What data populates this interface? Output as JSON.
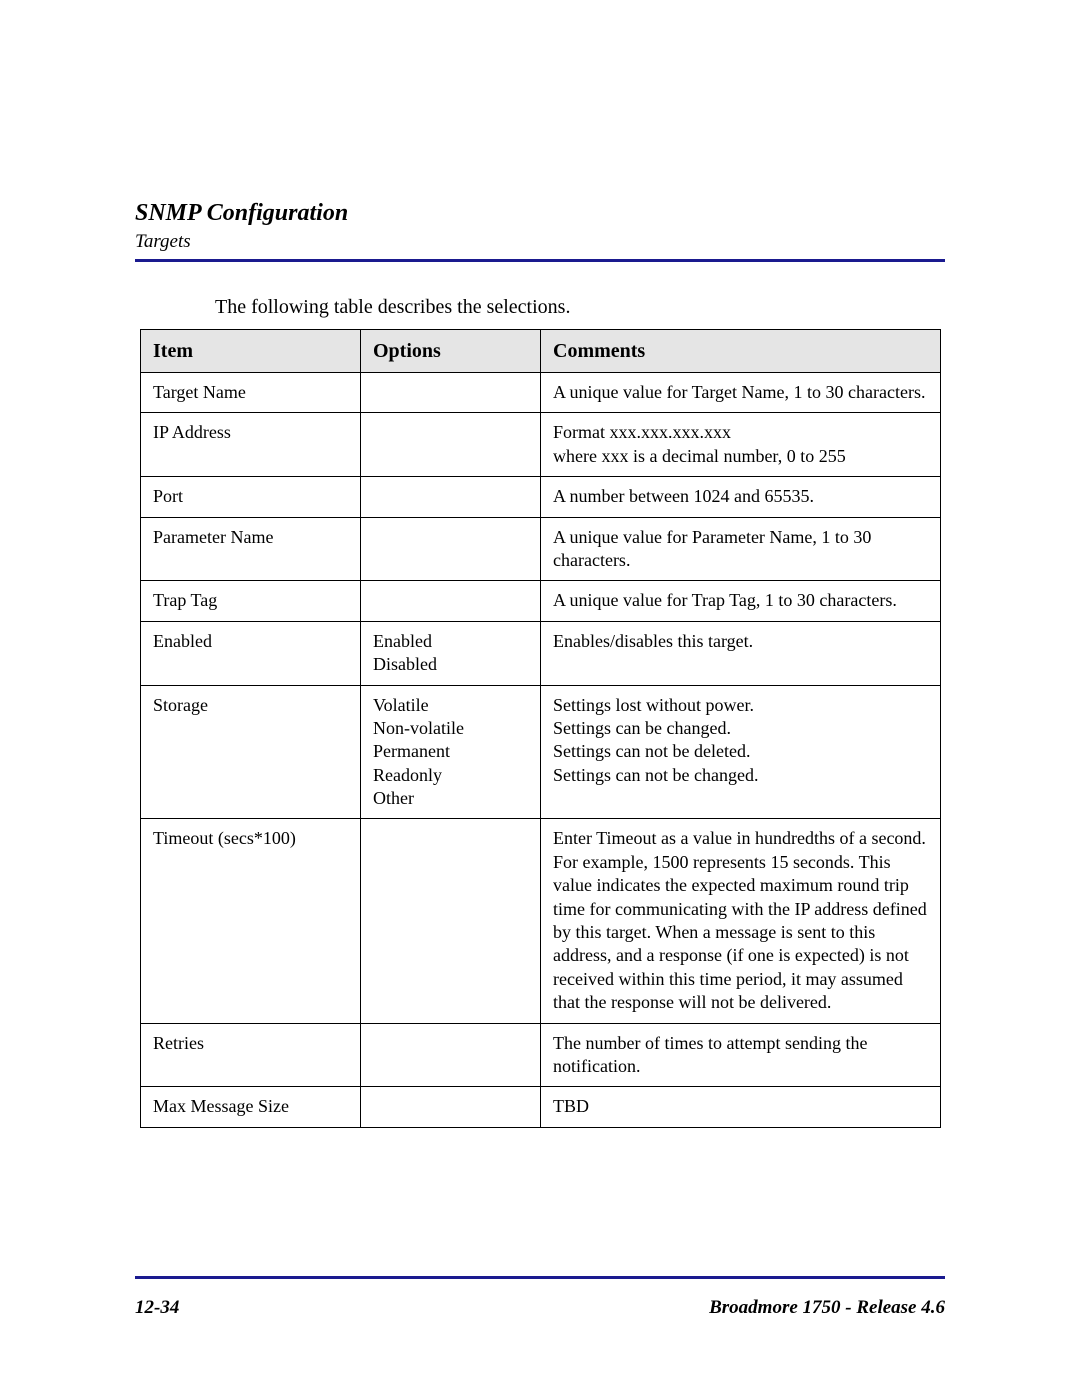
{
  "header": {
    "title": "SNMP Configuration",
    "subtitle": "Targets"
  },
  "intro": "The following table describes the selections.",
  "table": {
    "columns": [
      "Item",
      "Options",
      "Comments"
    ],
    "rows": [
      {
        "item": "Target Name",
        "options": [],
        "comments": [
          "A unique value for Target Name, 1 to 30 characters."
        ]
      },
      {
        "item": "IP Address",
        "options": [],
        "comments": [
          "Format xxx.xxx.xxx.xxx",
          "where xxx is a decimal number, 0 to 255"
        ]
      },
      {
        "item": "Port",
        "options": [],
        "comments": [
          "A number between 1024 and 65535."
        ]
      },
      {
        "item": "Parameter Name",
        "options": [],
        "comments": [
          "A unique value for Parameter Name, 1 to 30 characters."
        ]
      },
      {
        "item": "Trap Tag",
        "options": [],
        "comments": [
          "A unique value for Trap Tag, 1 to 30 characters."
        ]
      },
      {
        "item": "Enabled",
        "options": [
          "Enabled",
          "Disabled"
        ],
        "comments": [
          "Enables/disables this target."
        ]
      },
      {
        "item": "Storage",
        "options": [
          "Volatile",
          "Non-volatile",
          "Permanent",
          "Readonly",
          "Other"
        ],
        "comments": [
          "Settings lost without power.",
          "Settings can be changed.",
          "Settings can not be deleted.",
          "Settings can not be changed."
        ]
      },
      {
        "item": "Timeout (secs*100)",
        "options": [],
        "comments": [
          "Enter Timeout as a value in hundredths of a second. For example, 1500 represents 15 seconds. This value indicates the expected maximum round trip time for communicating with the IP address defined by this target. When a message is sent to this address, and a response (if one is expected) is not received within this time period, it may assumed that the response will not be delivered."
        ]
      },
      {
        "item": "Retries",
        "options": [],
        "comments": [
          "The number of times to attempt sending the notification."
        ]
      },
      {
        "item": "Max Message Size",
        "options": [],
        "comments": [
          "TBD"
        ]
      }
    ]
  },
  "footer": {
    "left": "12-34",
    "right": "Broadmore 1750 - Release 4.6"
  },
  "colors": {
    "rule": "#1a1a8f",
    "header_bg": "#e5e5e5",
    "text": "#000000",
    "page_bg": "#ffffff"
  }
}
